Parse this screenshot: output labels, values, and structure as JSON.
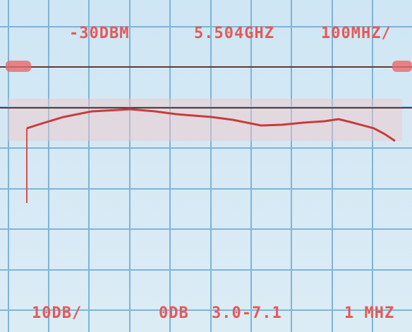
{
  "screen": {
    "top": {
      "reference_level": "-30DBM",
      "center_frequency": "5.504GHZ",
      "span_per_division": "100MHZ/"
    },
    "bottom": {
      "scale": "10DB/",
      "attenuation": "0DB",
      "range": "3.0-7.1",
      "resolution_bandwidth": "1 MHZ"
    }
  }
}
